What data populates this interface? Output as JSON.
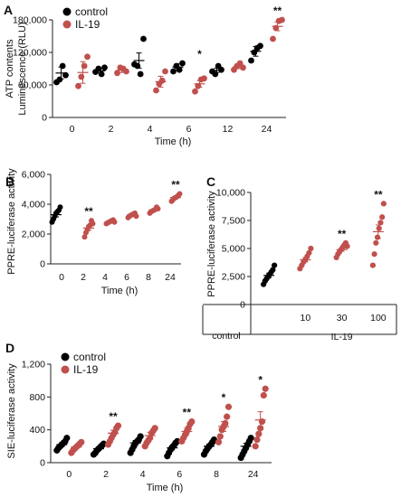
{
  "colors": {
    "control": "#000000",
    "il19": "#c0504d"
  },
  "chart_data": [
    {
      "panel": "A",
      "type": "scatter",
      "ylabel": "ATP contents\nLuminescence (RLU)",
      "xlabel": "Time (h)",
      "ylim": [
        0,
        180000
      ],
      "yticks": [
        0,
        60000,
        120000,
        180000
      ],
      "ytick_labels": [
        "0",
        "60,000",
        "120,000",
        "180,000"
      ],
      "categories": [
        "0",
        "2",
        "4",
        "6",
        "12",
        "24"
      ],
      "legend": [
        "control",
        "IL-19"
      ],
      "series": [
        {
          "name": "control",
          "color": "#000000",
          "values": [
            [
              65000,
              70000,
              95000,
              78000
            ],
            [
              84000,
              90000,
              80000,
              92000
            ],
            [
              98000,
              95000,
              80000,
              145000
            ],
            [
              85000,
              95000,
              88000,
              100000
            ],
            [
              85000,
              80000,
              95000,
              88000
            ],
            [
              105000,
              120000,
              128000,
              132000
            ]
          ],
          "means": [
            82000,
            86000,
            105000,
            93000,
            87000,
            122000
          ],
          "sems": [
            11000,
            4000,
            14000,
            6000,
            4000,
            9000
          ]
        },
        {
          "name": "IL-19",
          "color": "#c0504d",
          "values": [
            [
              58000,
              75000,
              95000,
              112000
            ],
            [
              82000,
              92000,
              90000,
              85000
            ],
            [
              50000,
              62000,
              68000,
              85000
            ],
            [
              48000,
              58000,
              70000,
              72000
            ],
            [
              88000,
              95000,
              100000,
              92000
            ],
            [
              145000,
              165000,
              178000,
              180000
            ]
          ],
          "means": [
            83000,
            87000,
            66000,
            62000,
            94000,
            168000
          ],
          "sems": [
            20000,
            4000,
            10000,
            6000,
            4000,
            8000
          ]
        }
      ],
      "annotations": [
        {
          "category": "6",
          "text": "*"
        },
        {
          "category": "24",
          "text": "**"
        }
      ]
    },
    {
      "panel": "B",
      "type": "scatter",
      "ylabel": "PPRE-luciferase activity",
      "xlabel": "Time (h)",
      "ylim": [
        0,
        6000
      ],
      "yticks": [
        0,
        2000,
        4000,
        6000
      ],
      "ytick_labels": [
        "0",
        "2,000",
        "4,000",
        "6,000"
      ],
      "categories": [
        "0",
        "2",
        "4",
        "6",
        "8",
        "24"
      ],
      "series": [
        {
          "name": "",
          "color": "#000000",
          "values": [
            [
              2800,
              3000,
              3200,
              3400,
              3500,
              3600,
              3800
            ]
          ],
          "means": [
            3300
          ],
          "sems": [
            150
          ]
        },
        {
          "name": "",
          "color": "#c0504d",
          "values": [
            [],
            [
              1800,
              2100,
              2300,
              2500,
              2600,
              2900,
              2700
            ],
            [
              2700,
              2750,
              2800,
              2850,
              2900,
              2950,
              2800
            ],
            [
              3100,
              3200,
              3250,
              3300,
              3350,
              3400,
              3200
            ],
            [
              3400,
              3500,
              3550,
              3600,
              3650,
              3800,
              3700
            ],
            [
              4200,
              4300,
              4400,
              4450,
              4500,
              4600,
              4700
            ]
          ],
          "means": [
            null,
            2400,
            2830,
            3260,
            3600,
            4450
          ],
          "sems": [
            null,
            150,
            40,
            50,
            60,
            70
          ]
        }
      ],
      "annotations": [
        {
          "category": "2",
          "text": "**"
        },
        {
          "category": "24",
          "text": "**"
        }
      ]
    },
    {
      "panel": "C",
      "type": "scatter",
      "ylabel": "PPRE-luciferase activity",
      "ylim": [
        0,
        10000
      ],
      "yticks": [
        0,
        2500,
        5000,
        7500,
        10000
      ],
      "ytick_labels": [
        "0",
        "2,500",
        "5,000",
        "7,500",
        "10,000"
      ],
      "categories": [
        "control",
        "10",
        "30",
        "100"
      ],
      "group_label": "IL-19",
      "series": [
        {
          "name": "",
          "color": "#000000",
          "values": [
            [
              1800,
              2100,
              2300,
              2500,
              2700,
              2900,
              3100,
              3500
            ]
          ],
          "means": [
            2600
          ],
          "sems": [
            200
          ]
        },
        {
          "name": "",
          "color": "#c0504d",
          "values": [
            [],
            [
              3200,
              3500,
              3800,
              4000,
              4300,
              4600,
              5000
            ],
            [
              4200,
              4500,
              4700,
              4900,
              5100,
              5300,
              5500,
              5200
            ],
            [
              3500,
              4500,
              5500,
              6000,
              6800,
              7300,
              7800,
              9000
            ]
          ],
          "means": [
            null,
            4000,
            4900,
            6500
          ],
          "sems": [
            null,
            200,
            150,
            600
          ]
        }
      ],
      "annotations": [
        {
          "category": "30",
          "text": "**"
        },
        {
          "category": "100",
          "text": "**"
        }
      ]
    },
    {
      "panel": "D",
      "type": "scatter",
      "ylabel": "SIE-luciferase activity",
      "xlabel": "Time (h)",
      "ylim": [
        0,
        1200
      ],
      "yticks": [
        0,
        400,
        800,
        1200
      ],
      "ytick_labels": [
        "0",
        "400",
        "800",
        "1,200"
      ],
      "categories": [
        "0",
        "2",
        "4",
        "6",
        "8",
        "24"
      ],
      "legend": [
        "control",
        "IL-19"
      ],
      "series": [
        {
          "name": "control",
          "color": "#000000",
          "values": [
            [
              150,
              180,
              200,
              220,
              240,
              260,
              300
            ],
            [
              100,
              120,
              150,
              170,
              190,
              210,
              230
            ],
            [
              120,
              160,
              200,
              240,
              260,
              280,
              320
            ],
            [
              80,
              120,
              160,
              190,
              210,
              240,
              260
            ],
            [
              100,
              140,
              170,
              200,
              220,
              250,
              280
            ],
            [
              60,
              100,
              140,
              180,
              220,
              260,
              300
            ]
          ],
          "means": [
            220,
            170,
            240,
            180,
            200,
            200
          ],
          "sems": [
            25,
            20,
            30,
            25,
            25,
            35
          ]
        },
        {
          "name": "IL-19",
          "color": "#c0504d",
          "values": [
            [
              120,
              150,
              170,
              190,
              210,
              230,
              250
            ],
            [
              220,
              260,
              300,
              340,
              370,
              420,
              450
            ],
            [
              200,
              240,
              270,
              300,
              360,
              390,
              420
            ],
            [
              260,
              300,
              340,
              380,
              420,
              470,
              500
            ],
            [
              250,
              320,
              400,
              440,
              480,
              560,
              680
            ],
            [
              200,
              280,
              350,
              420,
              500,
              820,
              900
            ]
          ],
          "means": [
            190,
            360,
            330,
            380,
            440,
            520
          ],
          "sems": [
            20,
            35,
            40,
            40,
            60,
            100
          ]
        }
      ],
      "annotations": [
        {
          "category": "2",
          "text": "**"
        },
        {
          "category": "6",
          "text": "**"
        },
        {
          "category": "8",
          "text": "*"
        },
        {
          "category": "24",
          "text": "*"
        }
      ]
    }
  ]
}
